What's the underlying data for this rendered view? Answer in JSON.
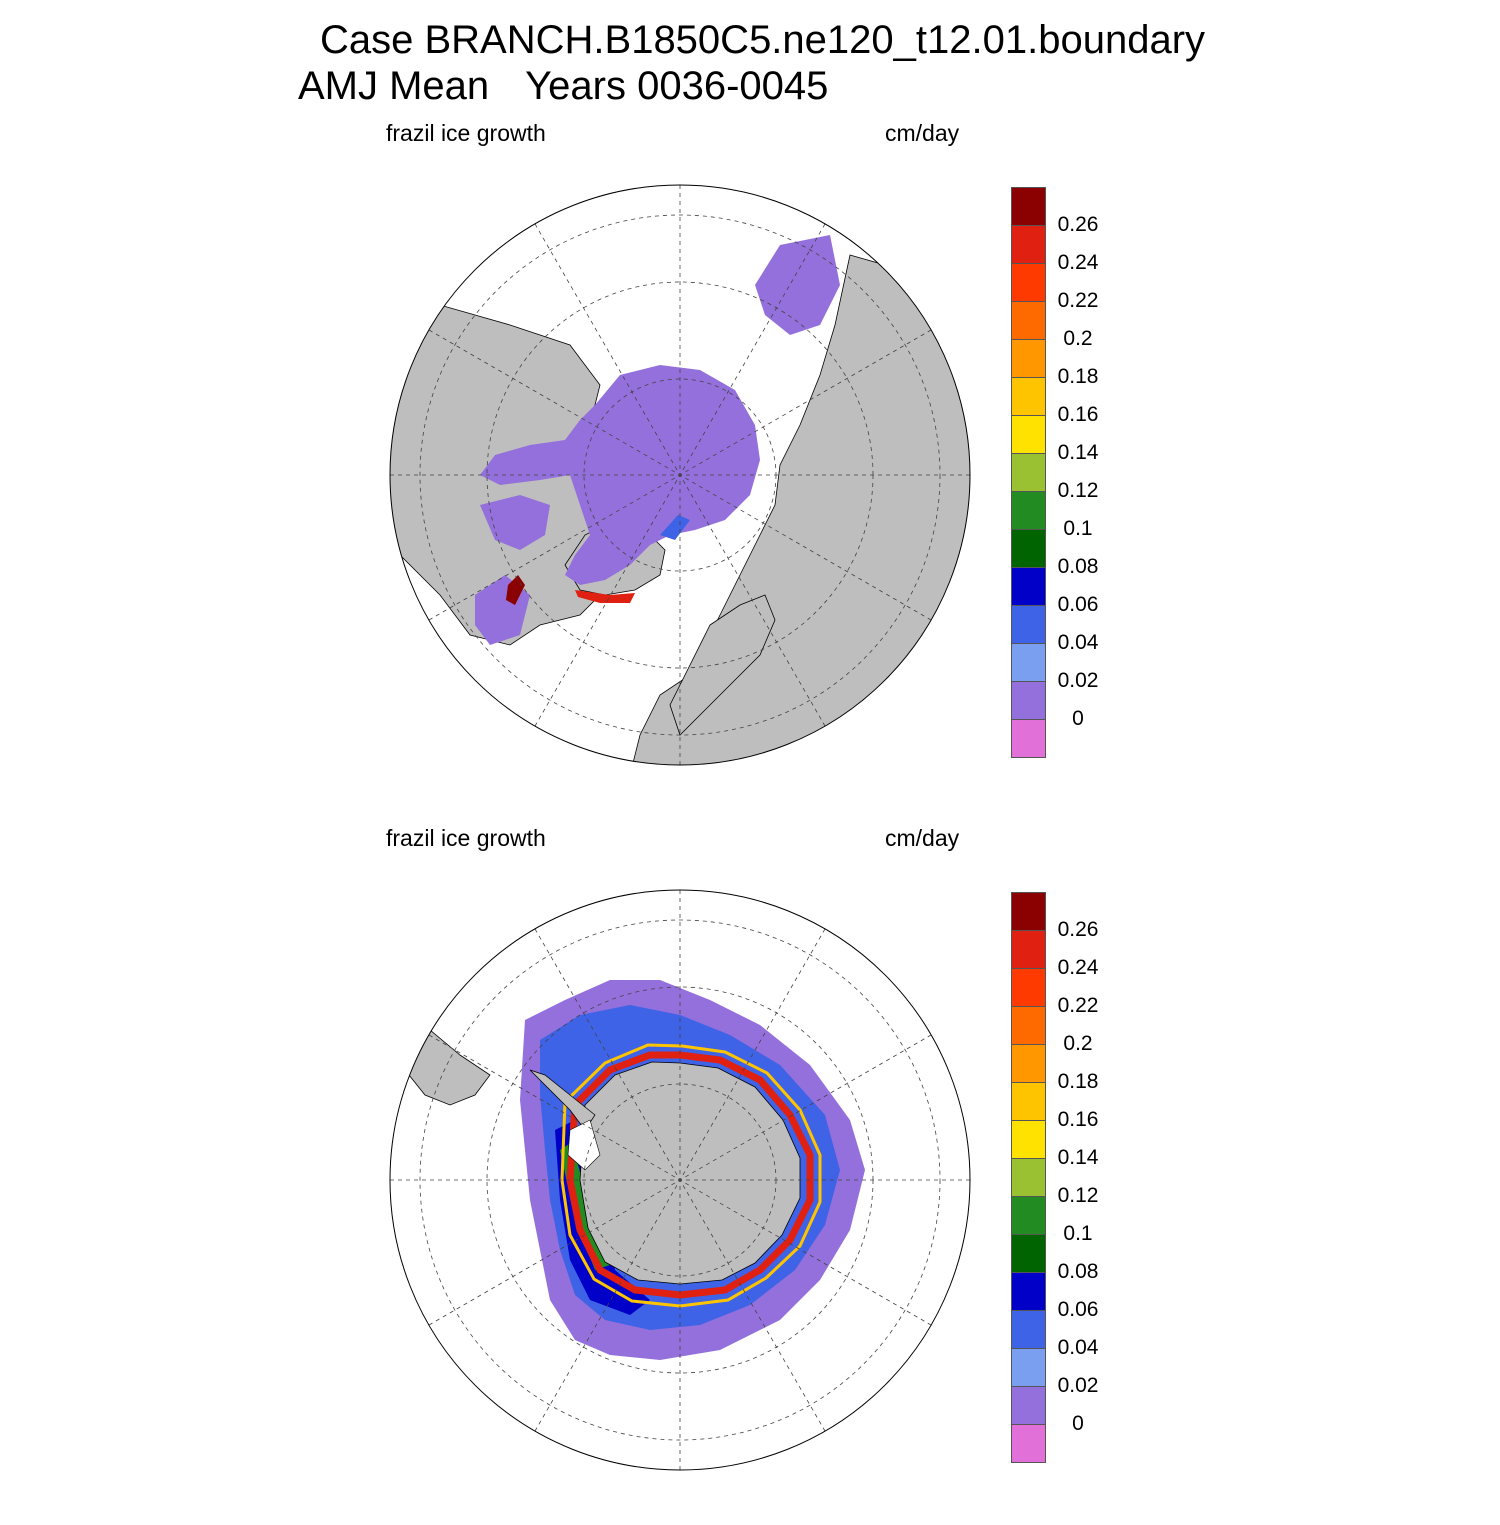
{
  "title": {
    "line1": "Case BRANCH.B1850C5.ne120_t12.01.boundary",
    "season": "AMJ Mean",
    "years": "Years 0036-0045"
  },
  "panels": [
    {
      "id": "north",
      "label_left": "frazil ice growth",
      "label_right": "cm/day"
    },
    {
      "id": "south",
      "label_left": "frazil ice growth",
      "label_right": "cm/day"
    }
  ],
  "colorbar": {
    "colors": [
      "#e170d8",
      "#9370db",
      "#7a9ff0",
      "#3f63e6",
      "#0000c8",
      "#006400",
      "#228b22",
      "#9ac132",
      "#ffe200",
      "#ffc400",
      "#ff9700",
      "#ff6a00",
      "#ff3a00",
      "#e02010",
      "#8b0000"
    ],
    "labels": [
      "0",
      "0.02",
      "0.04",
      "0.06",
      "0.08",
      "0.1",
      "0.12",
      "0.14",
      "0.16",
      "0.18",
      "0.2",
      "0.22",
      "0.24",
      "0.26"
    ]
  },
  "map_colors": {
    "land": "#bebebe",
    "low_ice": "#9370db",
    "ocean": "#ffffff"
  }
}
